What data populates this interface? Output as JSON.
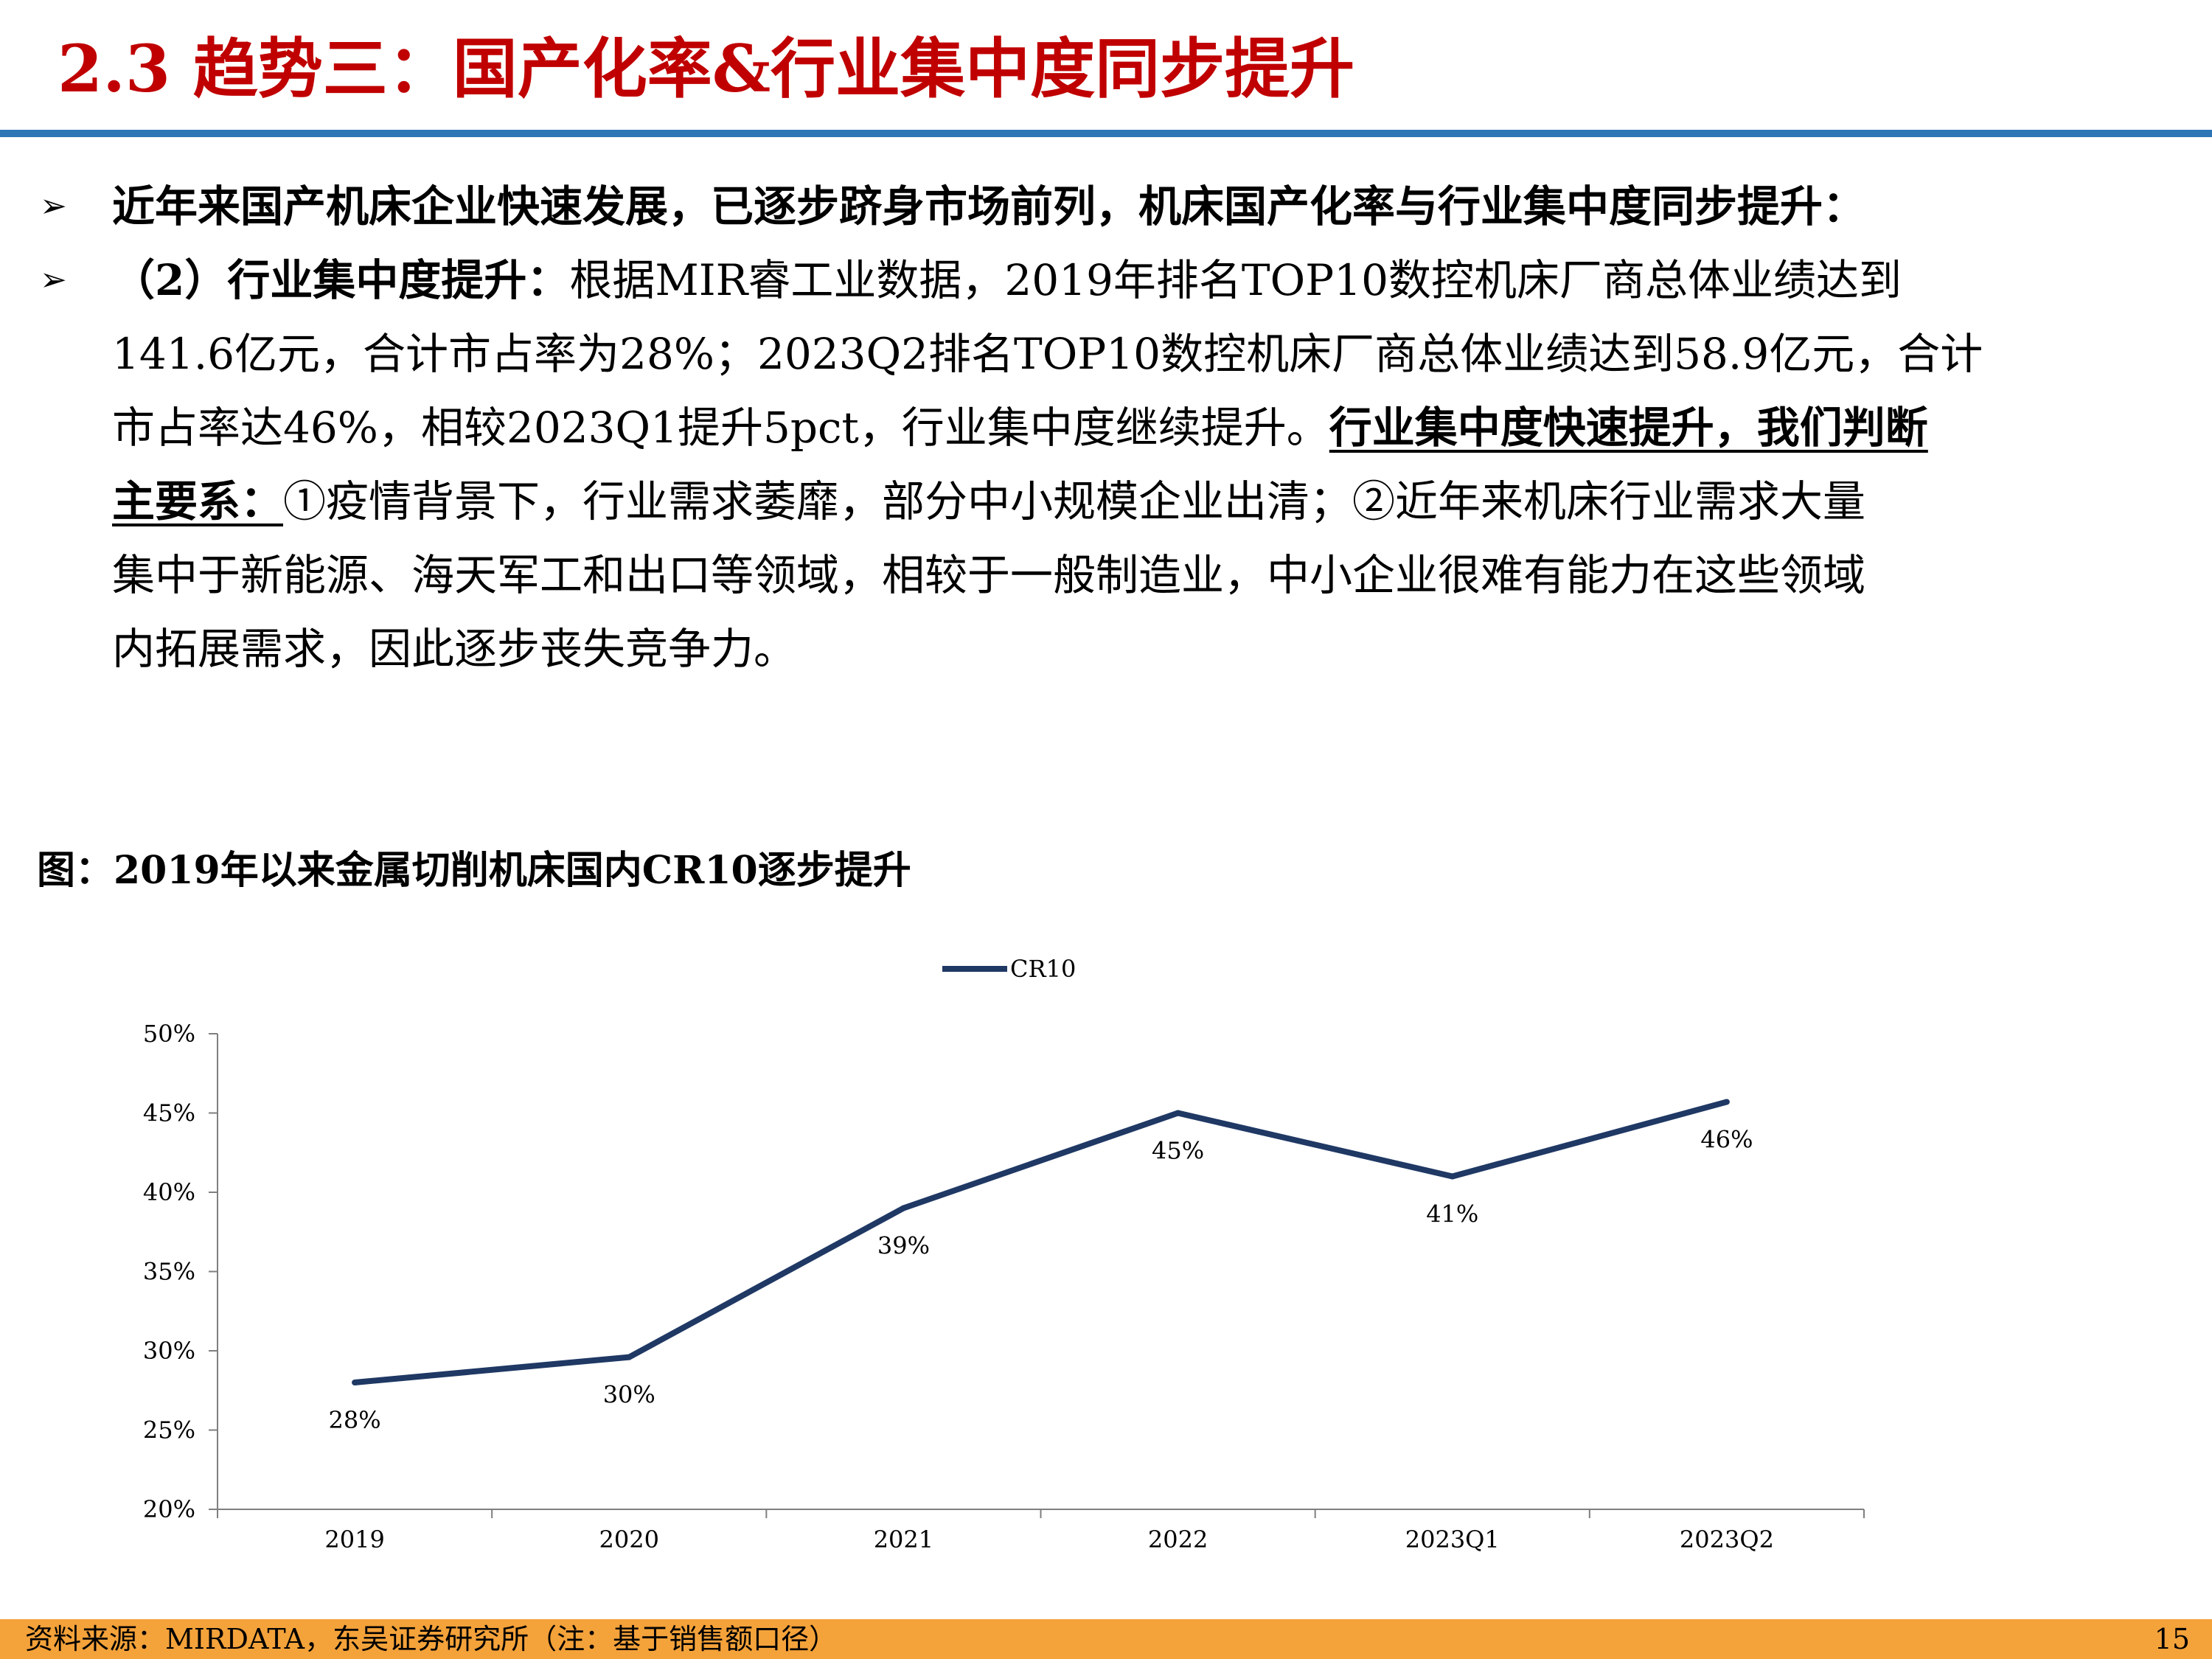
{
  "header": {
    "title": "2.3 趋势三：国产化率&行业集中度同步提升"
  },
  "bullets": {
    "b1": "近年来国产机床企业快速发展，已逐步跻身市场前列，机床国产化率与行业集中度同步提升：",
    "b2_lead": "（2）行业集中度提升：",
    "b2_l1": "根据MIR睿工业数据，2019年排名TOP10数控机床厂商总体业绩达到",
    "b2_l2": "141.6亿元，合计市占率为28%；2023Q2排名TOP10数控机床厂商总体业绩达到58.9亿元，合计",
    "b2_l3_plain": "市占率达46%，相较2023Q1提升5pct，行业集中度继续提升。",
    "b2_l3_emph": "行业集中度快速提升，我们判断",
    "b2_l4_emph": "主要系：",
    "b2_l4_plain": "①疫情背景下，行业需求萎靡，部分中小规模企业出清；②近年来机床行业需求大量",
    "b2_l5": "集中于新能源、海天军工和出口等领域，相较于一般制造业，中小企业很难有能力在这些领域",
    "b2_l6": "内拓展需求，因此逐步丧失竞争力。"
  },
  "figure": {
    "title": "图：2019年以来金属切削机床国内CR10逐步提升"
  },
  "chart_data": {
    "type": "line",
    "categories": [
      "2019",
      "2020",
      "2021",
      "2022",
      "2023Q1",
      "2023Q2"
    ],
    "series": [
      {
        "name": "CR10",
        "values": [
          28,
          29.6,
          39,
          45,
          41,
          45.7
        ],
        "labels": [
          "28%",
          "30%",
          "39%",
          "45%",
          "41%",
          "46%"
        ],
        "color": "#1F3864"
      }
    ],
    "ylim": [
      20,
      50
    ],
    "yticks": [
      20,
      25,
      30,
      35,
      40,
      45,
      50
    ],
    "ytick_labels": [
      "20%",
      "25%",
      "30%",
      "35%",
      "40%",
      "45%",
      "50%"
    ],
    "legend": "top-center",
    "grid": false
  },
  "footer": {
    "source": "资料来源：MIRDATA，东吴证券研究所（注：基于销售额口径）",
    "page": "15"
  }
}
